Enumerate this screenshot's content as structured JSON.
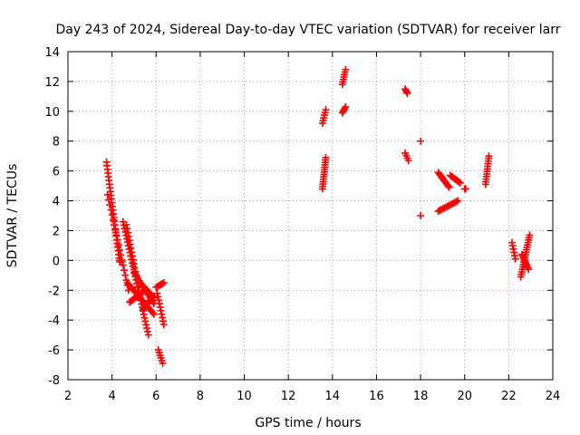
{
  "chart_data": {
    "type": "scatter",
    "title": "Day 243 of 2024, Sidereal Day-to-day VTEC variation (SDTVAR) for receiver larr",
    "xlabel": "GPS time / hours",
    "ylabel": "SDTVAR / TECUs",
    "xlim": [
      2,
      24
    ],
    "ylim": [
      -8,
      14
    ],
    "xticks": [
      2,
      4,
      6,
      8,
      10,
      12,
      14,
      16,
      18,
      20,
      22,
      24
    ],
    "yticks": [
      -8,
      -6,
      -4,
      -2,
      0,
      2,
      4,
      6,
      8,
      10,
      12,
      14
    ],
    "grid": true,
    "marker": "+",
    "series_color": "#ff0000",
    "segments": [
      {
        "from": [
          3.75,
          6.6
        ],
        "to": [
          4.35,
          -0.1
        ],
        "n": 28
      },
      {
        "from": [
          3.8,
          4.4
        ],
        "to": [
          4.75,
          -2.0
        ],
        "n": 20
      },
      {
        "from": [
          4.5,
          2.6
        ],
        "to": [
          5.65,
          -5.0
        ],
        "n": 34
      },
      {
        "from": [
          4.65,
          2.4
        ],
        "to": [
          5.3,
          -2.6
        ],
        "n": 20
      },
      {
        "from": [
          4.7,
          -1.5
        ],
        "to": [
          5.9,
          -3.6
        ],
        "n": 22
      },
      {
        "from": [
          4.8,
          -2.8
        ],
        "to": [
          5.5,
          -2.0
        ],
        "n": 14
      },
      {
        "from": [
          5.0,
          -0.8
        ],
        "to": [
          5.9,
          -2.9
        ],
        "n": 16
      },
      {
        "from": [
          5.2,
          -1.4
        ],
        "to": [
          5.9,
          -2.5
        ],
        "n": 14
      },
      {
        "from": [
          5.4,
          -3.3
        ],
        "to": [
          5.85,
          -2.4
        ],
        "n": 10
      },
      {
        "from": [
          6.0,
          -1.8
        ],
        "to": [
          6.35,
          -1.5
        ],
        "n": 6
      },
      {
        "from": [
          6.05,
          -2.2
        ],
        "to": [
          6.35,
          -4.3
        ],
        "n": 10
      },
      {
        "from": [
          6.1,
          -6.0
        ],
        "to": [
          6.3,
          -6.9
        ],
        "n": 6
      },
      {
        "from": [
          13.55,
          4.8
        ],
        "to": [
          13.7,
          6.9
        ],
        "n": 14
      },
      {
        "from": [
          13.55,
          9.2
        ],
        "to": [
          13.7,
          10.1
        ],
        "n": 6
      },
      {
        "from": [
          14.45,
          11.8
        ],
        "to": [
          14.6,
          12.8
        ],
        "n": 7
      },
      {
        "from": [
          14.45,
          9.9
        ],
        "to": [
          14.6,
          10.3
        ],
        "n": 5
      },
      {
        "from": [
          17.3,
          11.5
        ],
        "to": [
          17.4,
          11.2
        ],
        "n": 4
      },
      {
        "from": [
          17.3,
          7.2
        ],
        "to": [
          17.45,
          6.7
        ],
        "n": 4
      },
      {
        "from": [
          18.8,
          5.9
        ],
        "to": [
          19.3,
          4.9
        ],
        "n": 12
      },
      {
        "from": [
          18.8,
          3.3
        ],
        "to": [
          19.7,
          4.0
        ],
        "n": 14
      },
      {
        "from": [
          19.35,
          5.7
        ],
        "to": [
          19.8,
          5.2
        ],
        "n": 10
      },
      {
        "from": [
          20.95,
          5.1
        ],
        "to": [
          21.1,
          7.0
        ],
        "n": 12
      },
      {
        "from": [
          22.15,
          1.2
        ],
        "to": [
          22.3,
          0.1
        ],
        "n": 6
      },
      {
        "from": [
          22.55,
          -1.1
        ],
        "to": [
          22.95,
          1.7
        ],
        "n": 18
      },
      {
        "from": [
          22.6,
          0.4
        ],
        "to": [
          22.9,
          -0.6
        ],
        "n": 10
      }
    ],
    "points": [
      [
        18.0,
        8.0
      ],
      [
        18.0,
        3.0
      ],
      [
        20.05,
        4.8
      ],
      [
        20.0,
        4.8
      ],
      [
        4.35,
        0.0
      ],
      [
        4.45,
        -0.1
      ],
      [
        6.25,
        -1.6
      ]
    ]
  }
}
